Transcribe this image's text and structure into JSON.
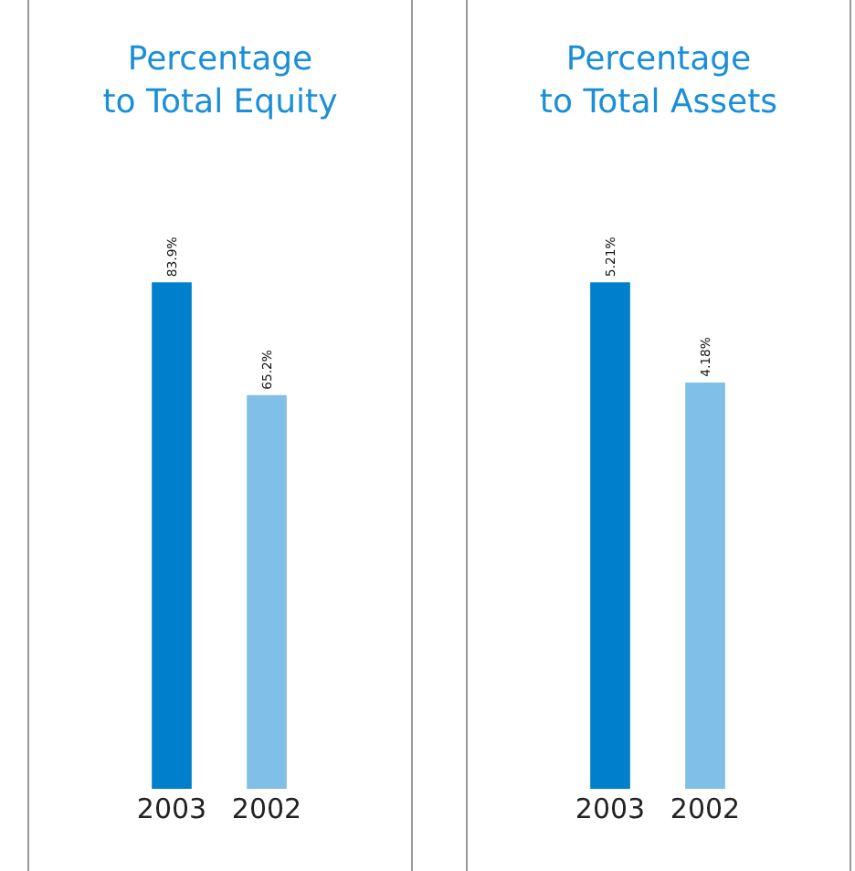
{
  "chart_data": [
    {
      "type": "bar",
      "title": "Percentage\nto Total Equity",
      "categories": [
        "2003",
        "2002"
      ],
      "values": [
        83.9,
        65.2
      ],
      "colors": [
        "#0080cc",
        "#80bfe8"
      ],
      "value_labels": [
        "83.9%",
        "65.2%"
      ],
      "tick_labels": "x"
    },
    {
      "type": "bar",
      "title": "Percentage\nto Total Assets",
      "categories": [
        "2003",
        "2002"
      ],
      "values": [
        5.21,
        4.18
      ],
      "colors": [
        "#0080cc",
        "#80bfe8"
      ],
      "value_labels": [
        "5.21%",
        "4.18%"
      ],
      "tick_labels": "x"
    }
  ]
}
